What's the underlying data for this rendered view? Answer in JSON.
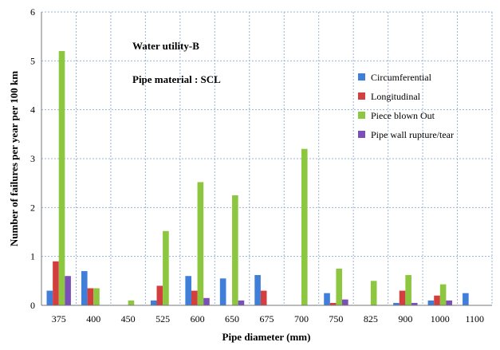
{
  "chart_data": {
    "type": "bar",
    "annotations": [
      "Water utility-B",
      "Pipe material : SCL"
    ],
    "xlabel": "Pipe diameter (mm)",
    "ylabel": "Number of failures per year per 100 km",
    "ylim": [
      0,
      6
    ],
    "yticks": [
      "0",
      "1",
      "2",
      "3",
      "4",
      "5",
      "6"
    ],
    "grid": true,
    "legend_position": "right",
    "categories": [
      "375",
      "400",
      "450",
      "525",
      "600",
      "650",
      "675",
      "700",
      "750",
      "825",
      "900",
      "1000",
      "1100"
    ],
    "series": [
      {
        "name": "Circumferential",
        "color": "#3f7fd9",
        "values": [
          0.3,
          0.7,
          0,
          0.1,
          0.6,
          0.55,
          0.62,
          0,
          0.25,
          0,
          0.05,
          0.1,
          0.25
        ]
      },
      {
        "name": "Longitudinal",
        "color": "#d33f3f",
        "values": [
          0.9,
          0.35,
          0,
          0.4,
          0.3,
          0,
          0.3,
          0,
          0.05,
          0,
          0.3,
          0.2,
          0
        ]
      },
      {
        "name": "Piece blown Out",
        "color": "#8dc63f",
        "values": [
          5.2,
          0.35,
          0.1,
          1.52,
          2.52,
          2.25,
          0,
          3.2,
          0.75,
          0.5,
          0.62,
          0.43,
          0
        ]
      },
      {
        "name": "Pipe wall rupture/tear",
        "color": "#7b4fb8",
        "values": [
          0.6,
          0,
          0,
          0,
          0.15,
          0.1,
          0,
          0,
          0.12,
          0,
          0.05,
          0.1,
          0
        ]
      }
    ]
  }
}
